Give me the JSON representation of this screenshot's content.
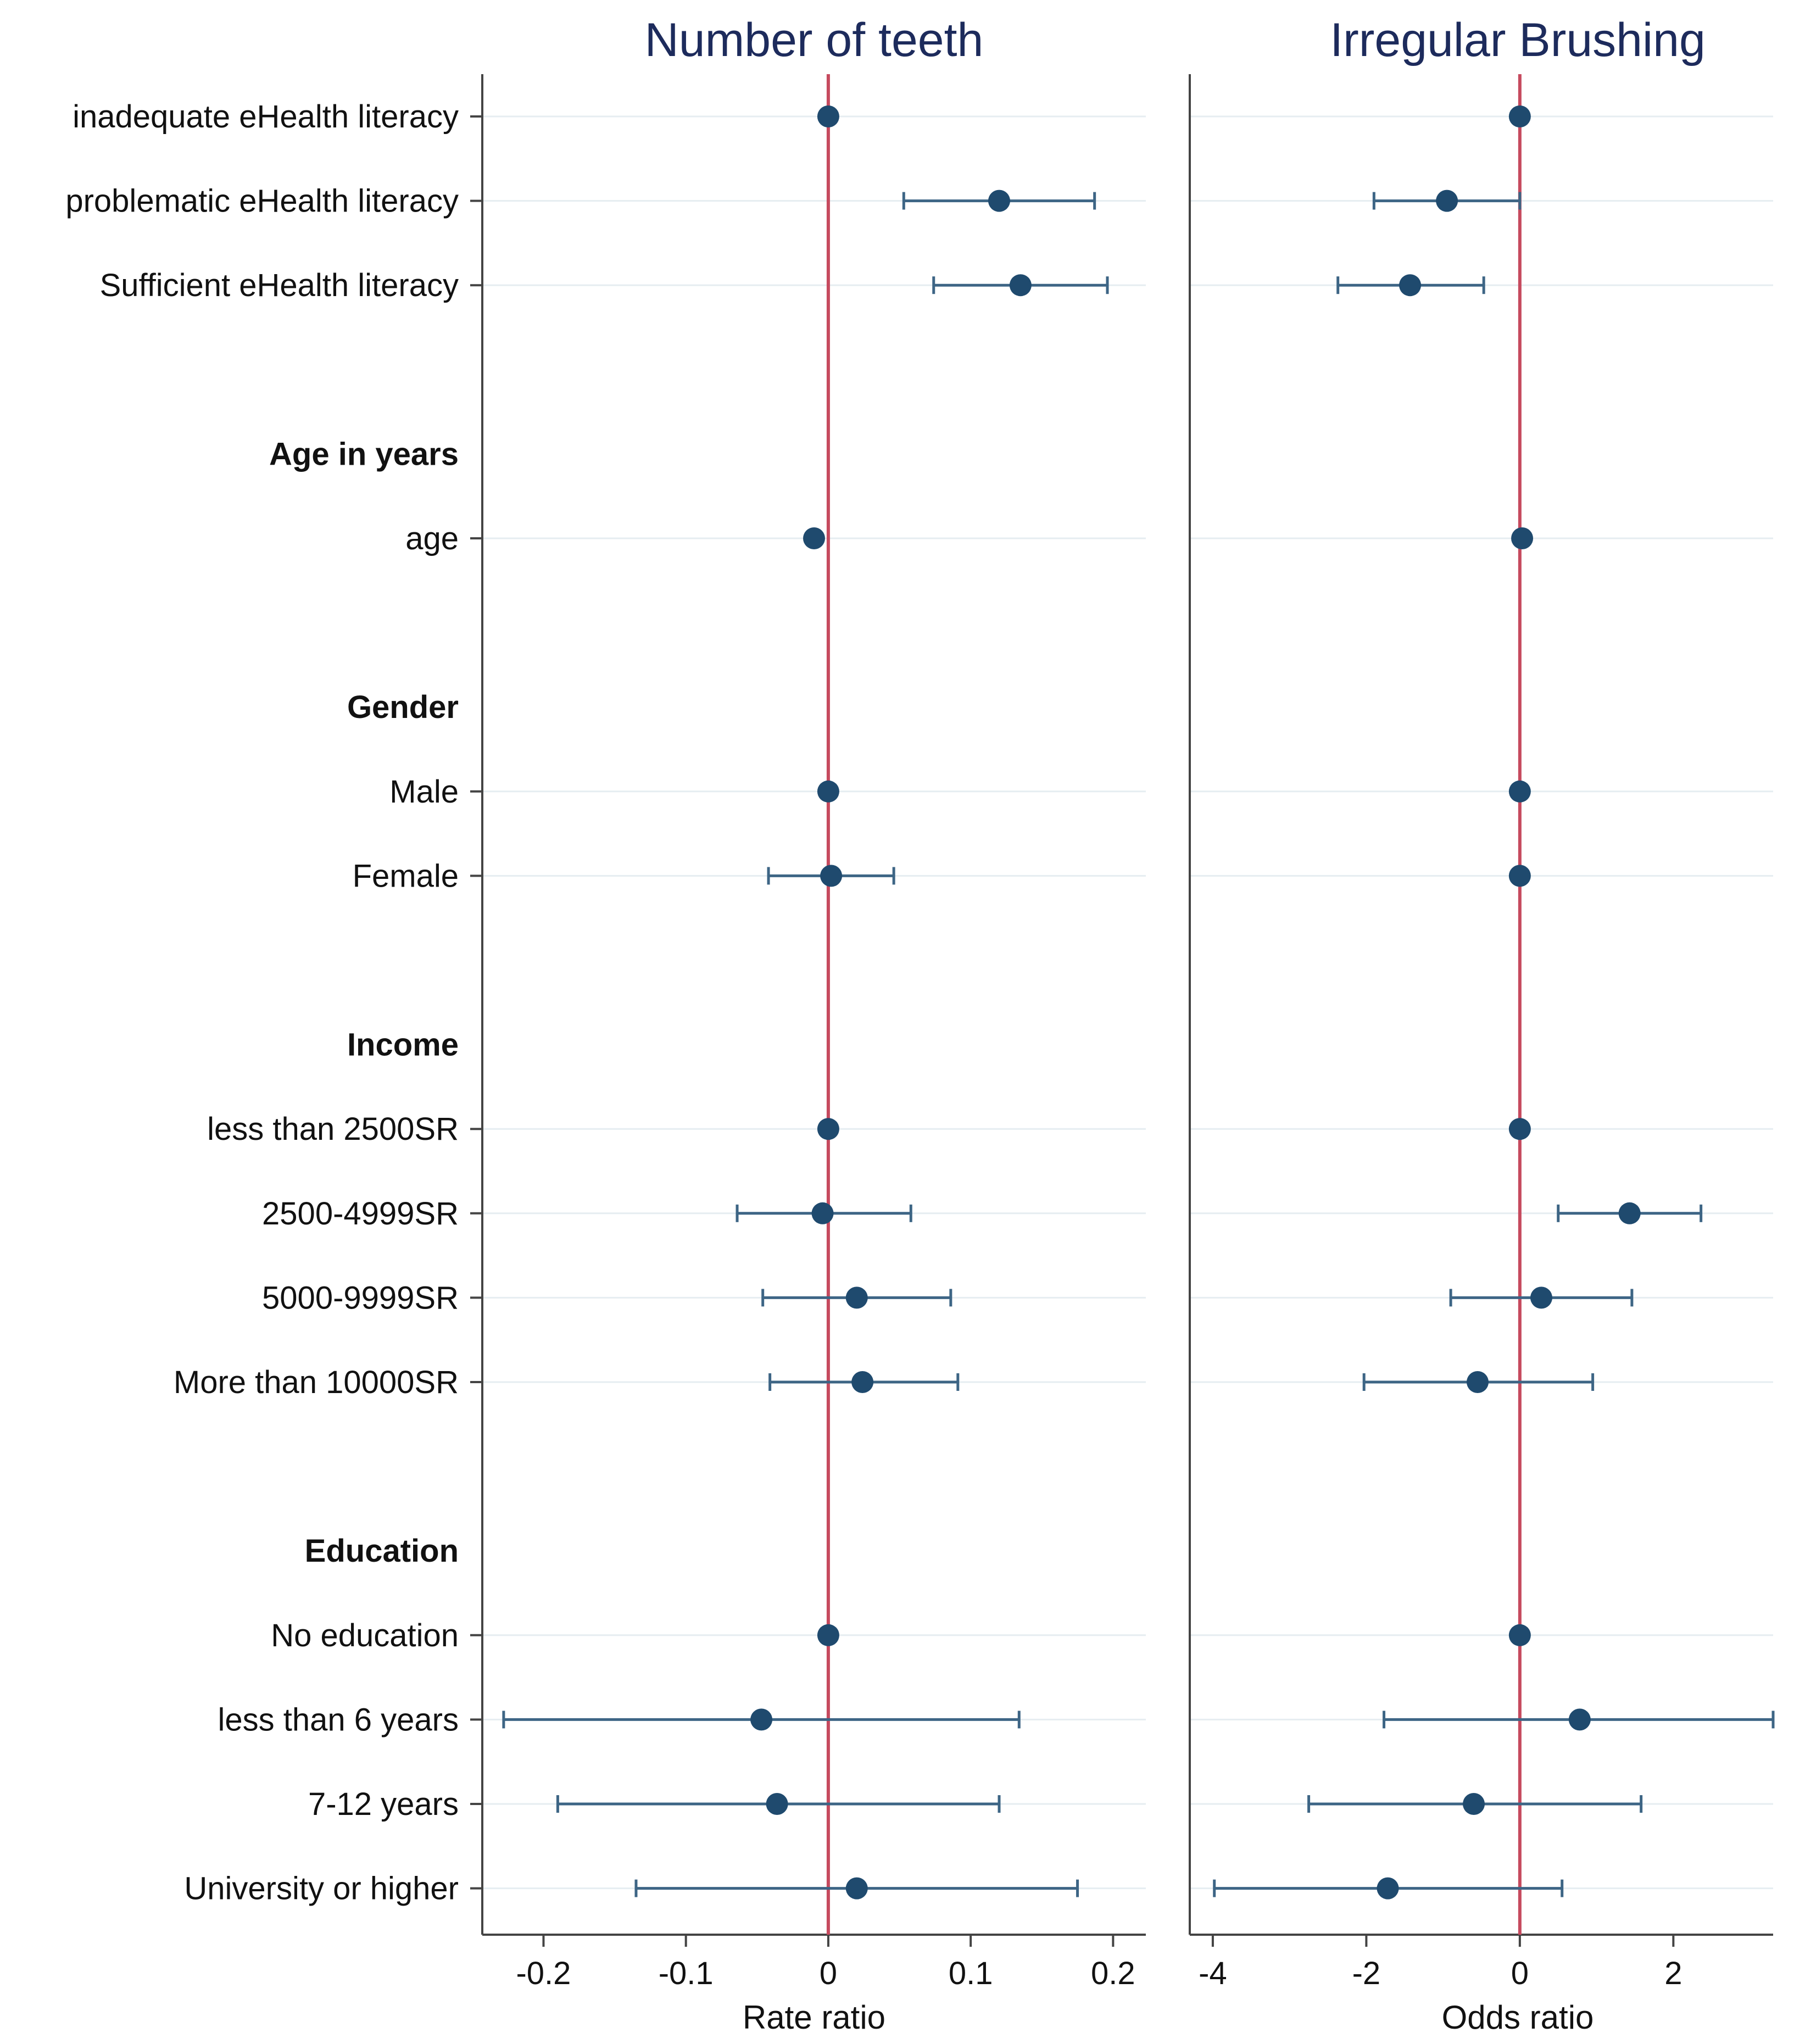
{
  "chart_data": {
    "type": "scatter",
    "subtype": "coefficient-forest-plot",
    "rows": [
      {
        "label": "inadequate eHealth literacy",
        "header": false
      },
      {
        "label": "problematic eHealth literacy",
        "header": false
      },
      {
        "label": "Sufficient eHealth literacy",
        "header": false
      },
      {
        "label": "",
        "header": false
      },
      {
        "label": "Age in years",
        "header": true
      },
      {
        "label": "age",
        "header": false
      },
      {
        "label": "",
        "header": false
      },
      {
        "label": "Gender",
        "header": true
      },
      {
        "label": "Male",
        "header": false
      },
      {
        "label": "Female",
        "header": false
      },
      {
        "label": "",
        "header": false
      },
      {
        "label": "Income",
        "header": true
      },
      {
        "label": "less than 2500SR",
        "header": false
      },
      {
        "label": "2500-4999SR",
        "header": false
      },
      {
        "label": "5000-9999SR",
        "header": false
      },
      {
        "label": "More than 10000SR",
        "header": false
      },
      {
        "label": "",
        "header": false
      },
      {
        "label": "Education",
        "header": true
      },
      {
        "label": "No education",
        "header": false
      },
      {
        "label": "less than 6 years",
        "header": false
      },
      {
        "label": "7-12 years",
        "header": false
      },
      {
        "label": "University or higher",
        "header": false
      }
    ],
    "panels": [
      {
        "title": "Number of teeth",
        "xlabel": "Rate ratio",
        "xlim": [
          -0.243,
          0.223
        ],
        "ticks": [
          -0.2,
          -0.1,
          0,
          0.1,
          0.2
        ],
        "tick_labels": [
          "-0.2",
          "-0.1",
          "0",
          "0.1",
          "0.2"
        ],
        "reference_line": 0,
        "points": [
          {
            "row": 0,
            "estimate": 0.0,
            "lower": null,
            "upper": null
          },
          {
            "row": 1,
            "estimate": 0.12,
            "lower": 0.053,
            "upper": 0.187
          },
          {
            "row": 2,
            "estimate": 0.135,
            "lower": 0.074,
            "upper": 0.196
          },
          {
            "row": 5,
            "estimate": -0.01,
            "lower": null,
            "upper": null
          },
          {
            "row": 8,
            "estimate": 0.0,
            "lower": null,
            "upper": null
          },
          {
            "row": 9,
            "estimate": 0.002,
            "lower": -0.042,
            "upper": 0.046
          },
          {
            "row": 12,
            "estimate": 0.0,
            "lower": null,
            "upper": null
          },
          {
            "row": 13,
            "estimate": -0.004,
            "lower": -0.064,
            "upper": 0.058
          },
          {
            "row": 14,
            "estimate": 0.02,
            "lower": -0.046,
            "upper": 0.086
          },
          {
            "row": 15,
            "estimate": 0.024,
            "lower": -0.041,
            "upper": 0.091
          },
          {
            "row": 18,
            "estimate": 0.0,
            "lower": null,
            "upper": null
          },
          {
            "row": 19,
            "estimate": -0.047,
            "lower": -0.228,
            "upper": 0.134
          },
          {
            "row": 20,
            "estimate": -0.036,
            "lower": -0.19,
            "upper": 0.12
          },
          {
            "row": 21,
            "estimate": 0.02,
            "lower": -0.135,
            "upper": 0.175
          }
        ]
      },
      {
        "title": "Irregular Brushing",
        "xlabel": "Odds ratio",
        "xlim": [
          -4.3,
          3.3
        ],
        "ticks": [
          -4,
          -2,
          0,
          2
        ],
        "tick_labels": [
          "-4",
          "-2",
          "0",
          "2"
        ],
        "reference_line": 0,
        "points": [
          {
            "row": 0,
            "estimate": 0.0,
            "lower": null,
            "upper": null
          },
          {
            "row": 1,
            "estimate": -0.95,
            "lower": -1.9,
            "upper": 0.0
          },
          {
            "row": 2,
            "estimate": -1.43,
            "lower": -2.37,
            "upper": -0.47
          },
          {
            "row": 5,
            "estimate": 0.03,
            "lower": null,
            "upper": null
          },
          {
            "row": 8,
            "estimate": 0.0,
            "lower": null,
            "upper": null
          },
          {
            "row": 9,
            "estimate": 0.0,
            "lower": null,
            "upper": null
          },
          {
            "row": 12,
            "estimate": 0.0,
            "lower": null,
            "upper": null
          },
          {
            "row": 13,
            "estimate": 1.43,
            "lower": 0.5,
            "upper": 2.36
          },
          {
            "row": 14,
            "estimate": 0.28,
            "lower": -0.9,
            "upper": 1.46
          },
          {
            "row": 15,
            "estimate": -0.55,
            "lower": -2.03,
            "upper": 0.95
          },
          {
            "row": 18,
            "estimate": 0.0,
            "lower": null,
            "upper": null
          },
          {
            "row": 19,
            "estimate": 0.78,
            "lower": -1.77,
            "upper": 3.3
          },
          {
            "row": 20,
            "estimate": -0.6,
            "lower": -2.75,
            "upper": 1.58
          },
          {
            "row": 21,
            "estimate": -1.72,
            "lower": -3.98,
            "upper": 0.55
          }
        ]
      }
    ]
  }
}
